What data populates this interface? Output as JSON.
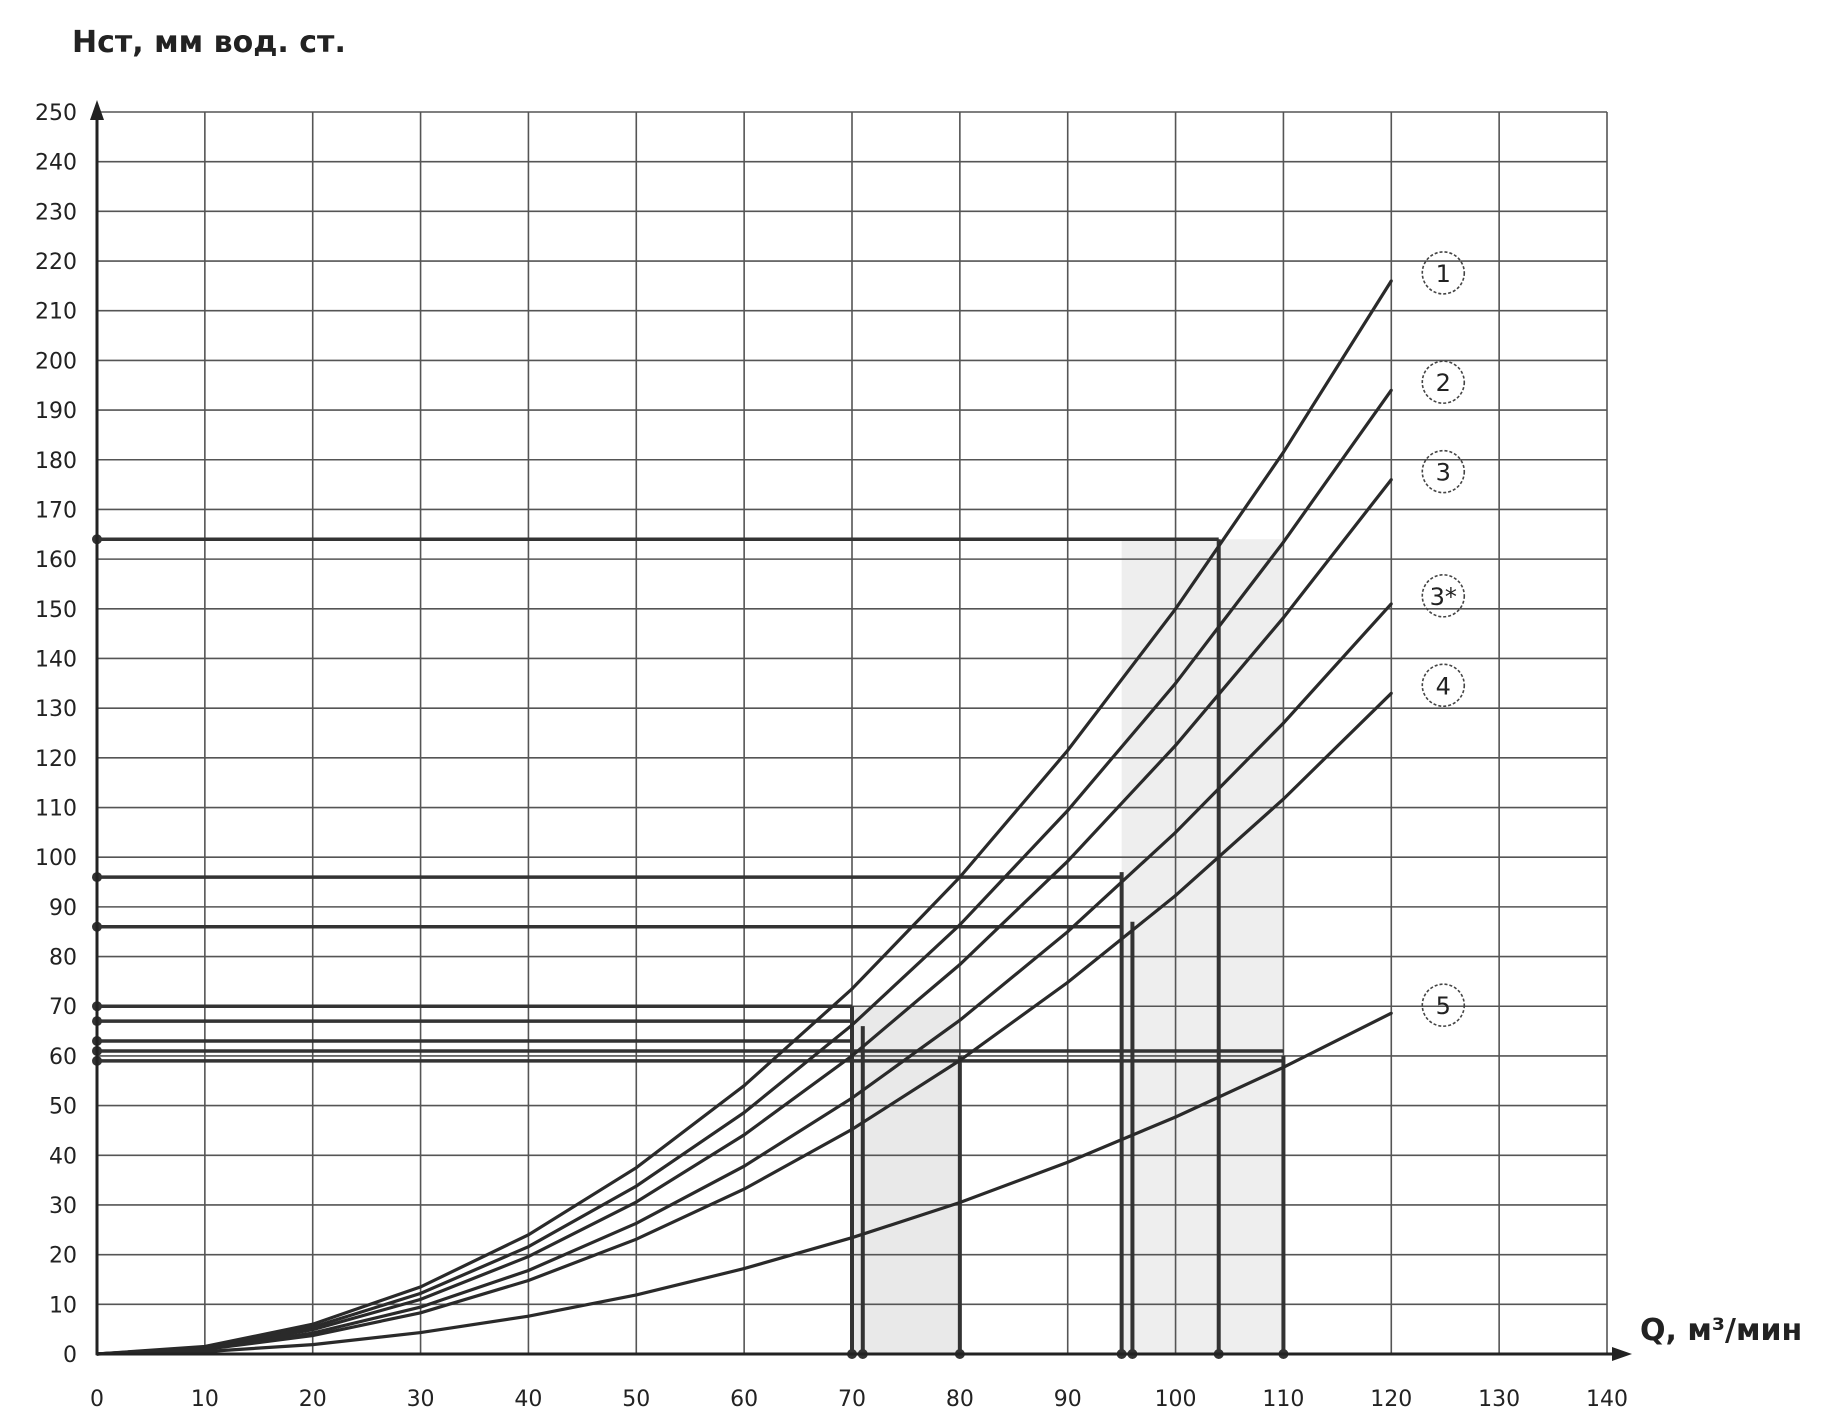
{
  "chart_data": {
    "type": "line",
    "title": "",
    "ylabel": "Hст, мм вод. ст.",
    "xlabel": "Q, м³/мин",
    "xlim": [
      0,
      140
    ],
    "ylim": [
      0,
      250
    ],
    "x_ticks": [
      0,
      10,
      20,
      30,
      40,
      50,
      60,
      70,
      80,
      90,
      100,
      110,
      120,
      130,
      140
    ],
    "y_ticks": [
      0,
      10,
      20,
      30,
      40,
      50,
      60,
      70,
      80,
      90,
      100,
      110,
      120,
      130,
      140,
      150,
      160,
      170,
      180,
      190,
      200,
      210,
      220,
      230,
      240,
      250
    ],
    "grid": true,
    "legend": "inline circled numbers at curve ends (right)",
    "series": [
      {
        "name": "1",
        "x": [
          0,
          10,
          20,
          30,
          40,
          50,
          60,
          70,
          80,
          90,
          100,
          110,
          120
        ],
        "y": [
          0,
          1.5,
          6,
          13.5,
          24,
          37.5,
          54,
          73.5,
          96,
          121.5,
          150,
          181.5,
          216
        ]
      },
      {
        "name": "2",
        "x": [
          0,
          10,
          20,
          30,
          40,
          50,
          60,
          70,
          80,
          90,
          100,
          110,
          120
        ],
        "y": [
          0,
          1.35,
          5.4,
          12.2,
          21.6,
          33.8,
          48.6,
          66.2,
          86.4,
          109.4,
          135,
          163.4,
          194
        ]
      },
      {
        "name": "3",
        "x": [
          0,
          10,
          20,
          30,
          40,
          50,
          60,
          70,
          80,
          90,
          100,
          110,
          120
        ],
        "y": [
          0,
          1.22,
          4.9,
          11,
          19.6,
          30.6,
          44.1,
          60,
          78.4,
          99.2,
          122.5,
          148.2,
          176
        ]
      },
      {
        "name": "3*",
        "x": [
          0,
          10,
          20,
          30,
          40,
          50,
          60,
          70,
          80,
          90,
          100,
          110,
          120
        ],
        "y": [
          0,
          1.05,
          4.2,
          9.45,
          16.8,
          26.3,
          37.8,
          51.5,
          67.2,
          85,
          105,
          127,
          151
        ]
      },
      {
        "name": "4",
        "x": [
          0,
          10,
          20,
          30,
          40,
          50,
          60,
          70,
          80,
          90,
          100,
          110,
          120
        ],
        "y": [
          0,
          0.92,
          3.7,
          8.3,
          14.8,
          23.1,
          33.2,
          45.2,
          59.1,
          74.8,
          92.3,
          111.7,
          133
        ]
      },
      {
        "name": "5",
        "x": [
          0,
          10,
          20,
          30,
          40,
          50,
          60,
          70,
          80,
          90,
          100,
          110,
          120
        ],
        "y": [
          0,
          0.48,
          1.9,
          4.3,
          7.6,
          11.9,
          17.2,
          23.4,
          30.5,
          38.6,
          47.7,
          57.7,
          68.6
        ]
      }
    ],
    "reference_lines": {
      "horizontal": [
        {
          "y": 164,
          "x_to": 104
        },
        {
          "y": 96,
          "x_to": 95
        },
        {
          "y": 86,
          "x_to": 95
        },
        {
          "y": 70,
          "x_to": 70
        },
        {
          "y": 67,
          "x_to": 70
        },
        {
          "y": 63,
          "x_to": 70
        },
        {
          "y": 61,
          "x_to": 110
        },
        {
          "y": 59,
          "x_to": 110
        }
      ],
      "vertical": [
        {
          "x": 70,
          "y_to": 70
        },
        {
          "x": 71,
          "y_to": 66
        },
        {
          "x": 80,
          "y_to": 60
        },
        {
          "x": 95,
          "y_to": 97
        },
        {
          "x": 96,
          "y_to": 87
        },
        {
          "x": 104,
          "y_to": 164
        },
        {
          "x": 110,
          "y_to": 60
        }
      ]
    },
    "colors": {
      "curve": "#2a2a2a",
      "grid": "#555555",
      "reference": "#333333",
      "shade": "#cfcfcf"
    }
  }
}
